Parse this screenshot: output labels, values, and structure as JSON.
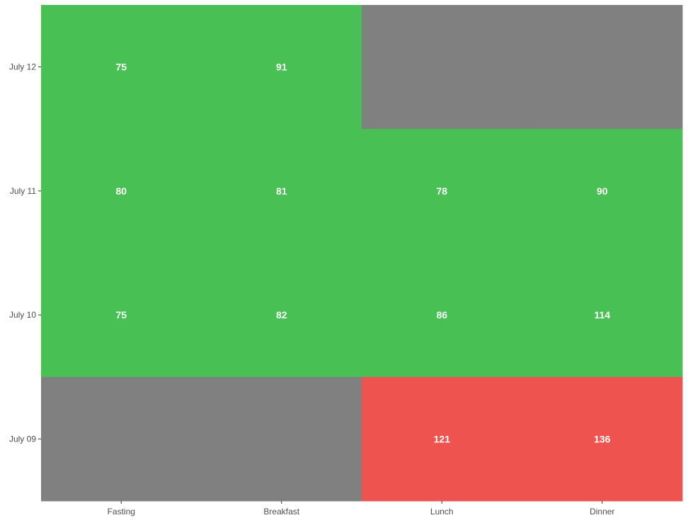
{
  "chart_data": {
    "type": "heatmap",
    "title": "",
    "xlabel": "",
    "ylabel": "",
    "x_categories": [
      "Fasting",
      "Breakfast",
      "Lunch",
      "Dinner"
    ],
    "y_categories": [
      "July 09",
      "July 10",
      "July 11",
      "July 12"
    ],
    "cells": [
      {
        "x": "Fasting",
        "y": "July 12",
        "value": 75,
        "status": "normal"
      },
      {
        "x": "Breakfast",
        "y": "July 12",
        "value": 91,
        "status": "normal"
      },
      {
        "x": "Lunch",
        "y": "July 12",
        "value": null,
        "status": "missing"
      },
      {
        "x": "Dinner",
        "y": "July 12",
        "value": null,
        "status": "missing"
      },
      {
        "x": "Fasting",
        "y": "July 11",
        "value": 80,
        "status": "normal"
      },
      {
        "x": "Breakfast",
        "y": "July 11",
        "value": 81,
        "status": "normal"
      },
      {
        "x": "Lunch",
        "y": "July 11",
        "value": 78,
        "status": "normal"
      },
      {
        "x": "Dinner",
        "y": "July 11",
        "value": 90,
        "status": "normal"
      },
      {
        "x": "Fasting",
        "y": "July 10",
        "value": 75,
        "status": "normal"
      },
      {
        "x": "Breakfast",
        "y": "July 10",
        "value": 82,
        "status": "normal"
      },
      {
        "x": "Lunch",
        "y": "July 10",
        "value": 86,
        "status": "normal"
      },
      {
        "x": "Dinner",
        "y": "July 10",
        "value": 114,
        "status": "normal"
      },
      {
        "x": "Fasting",
        "y": "July 09",
        "value": null,
        "status": "missing"
      },
      {
        "x": "Breakfast",
        "y": "July 09",
        "value": null,
        "status": "missing"
      },
      {
        "x": "Lunch",
        "y": "July 09",
        "value": 121,
        "status": "high"
      },
      {
        "x": "Dinner",
        "y": "July 09",
        "value": 136,
        "status": "high"
      }
    ],
    "colors": {
      "normal": "#48c054",
      "high": "#ef5350",
      "missing": "#808080"
    },
    "grid": false,
    "legend": "none"
  }
}
